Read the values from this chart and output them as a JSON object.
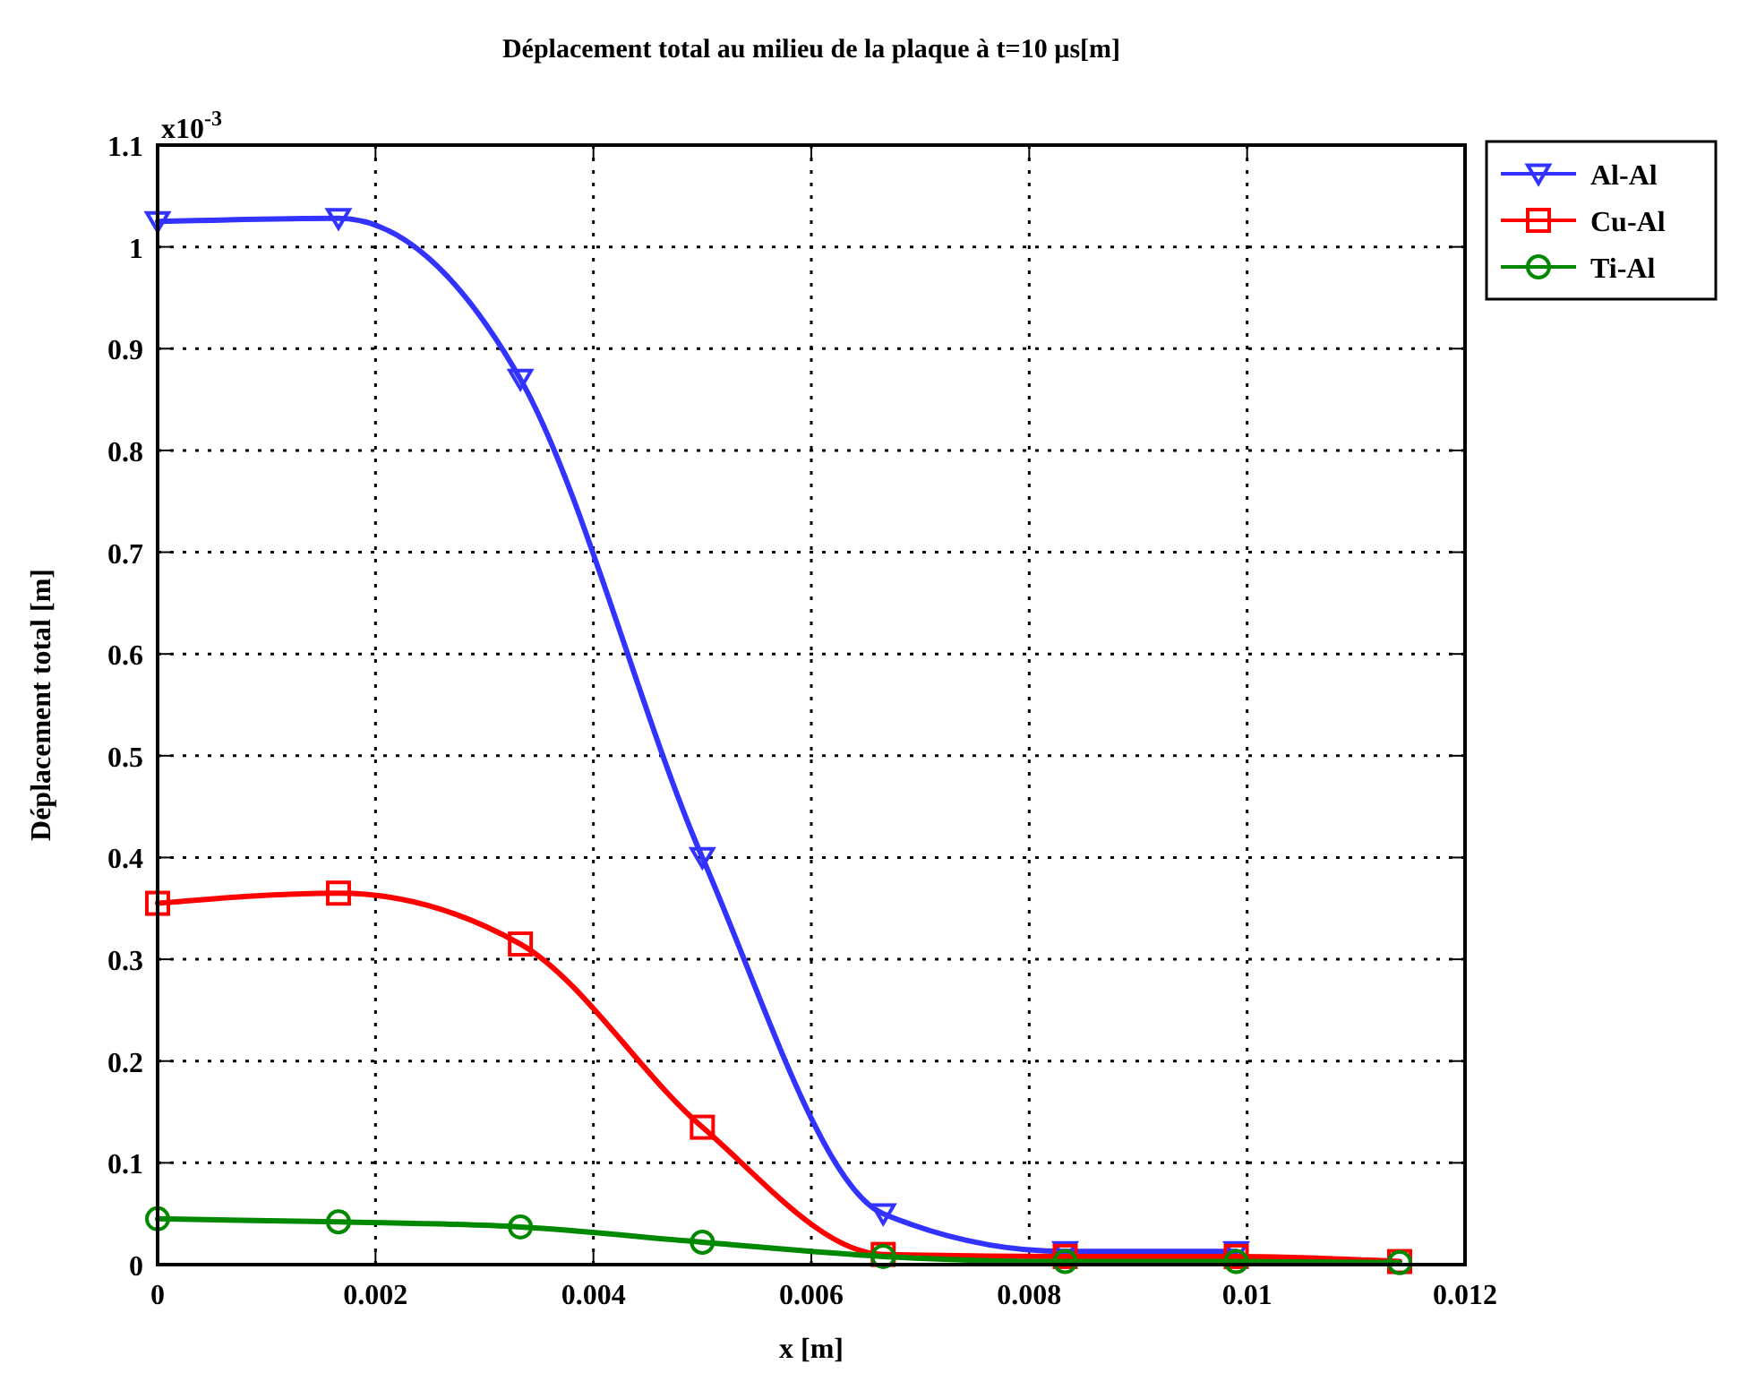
{
  "chart_data": {
    "type": "line",
    "title": "Déplacement total au milieu de la plaque à t=10 µs[m]",
    "xlabel": "x [m]",
    "ylabel": "Déplacement total [m]",
    "annotations": [
      "x10$^{-3}$"
    ],
    "xlim": [
      0,
      0.012
    ],
    "xticks": [
      0,
      0.002,
      0.004,
      0.006,
      0.008,
      0.01,
      0.012
    ],
    "ylim": [
      0,
      1.1
    ],
    "yticks": [
      0,
      0.1,
      0.2,
      0.3,
      0.4,
      0.5,
      0.6,
      0.7,
      0.8,
      0.9,
      1,
      1.1
    ],
    "grid": true,
    "legend": "top right",
    "series": [
      {
        "name": "Al-Al",
        "color": "#3333ff",
        "marker": "triangle",
        "x": [
          0,
          0.00166,
          0.00333,
          0.005,
          0.00666,
          0.00833,
          0.0099
        ],
        "values": [
          1.025,
          1.028,
          0.87,
          0.4,
          0.05,
          0.013,
          0.013
        ]
      },
      {
        "name": "Cu-Al",
        "color": "#ff0000",
        "marker": "square",
        "x": [
          0,
          0.00166,
          0.00333,
          0.005,
          0.00666,
          0.00833,
          0.0099,
          0.0114
        ],
        "values": [
          0.355,
          0.365,
          0.315,
          0.135,
          0.01,
          0.008,
          0.008,
          0.003
        ]
      },
      {
        "name": "Ti-Al",
        "color": "#008800",
        "marker": "circle",
        "x": [
          0,
          0.00166,
          0.00333,
          0.005,
          0.00666,
          0.00833,
          0.0099,
          0.0114
        ],
        "values": [
          0.045,
          0.042,
          0.037,
          0.022,
          0.008,
          0.003,
          0.003,
          0.002
        ]
      }
    ]
  }
}
